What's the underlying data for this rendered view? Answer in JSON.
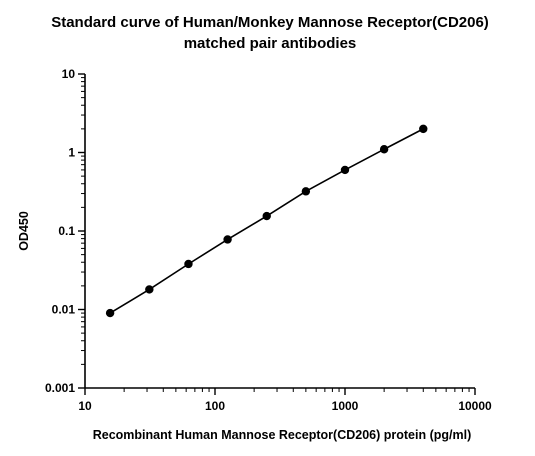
{
  "chart_data": {
    "type": "scatter",
    "title": "Standard curve of Human/Monkey Mannose Receptor(CD206)",
    "subtitle": "matched pair antibodies",
    "xlabel": "Recombinant Human Mannose Receptor(CD206) protein (pg/ml)",
    "ylabel": "OD450",
    "xscale": "log",
    "yscale": "log",
    "xlim": [
      10,
      10000
    ],
    "ylim": [
      0.001,
      10
    ],
    "xticks": [
      10,
      100,
      1000,
      10000
    ],
    "xtick_labels": [
      "10",
      "100",
      "1000",
      "10000"
    ],
    "yticks": [
      0.001,
      0.01,
      0.1,
      1,
      10
    ],
    "ytick_labels": [
      "0.001",
      "0.01",
      "0.1",
      "1",
      "10"
    ],
    "grid": false,
    "series": [
      {
        "x": [
          15.6,
          31.25,
          62.5,
          125,
          250,
          500,
          1000,
          2000,
          4000
        ],
        "y": [
          0.009,
          0.018,
          0.038,
          0.078,
          0.155,
          0.32,
          0.6,
          1.1,
          2.0
        ]
      }
    ],
    "fit_line": true,
    "colors": {
      "marker": "#000000",
      "line": "#000000",
      "axis": "#000000"
    }
  }
}
